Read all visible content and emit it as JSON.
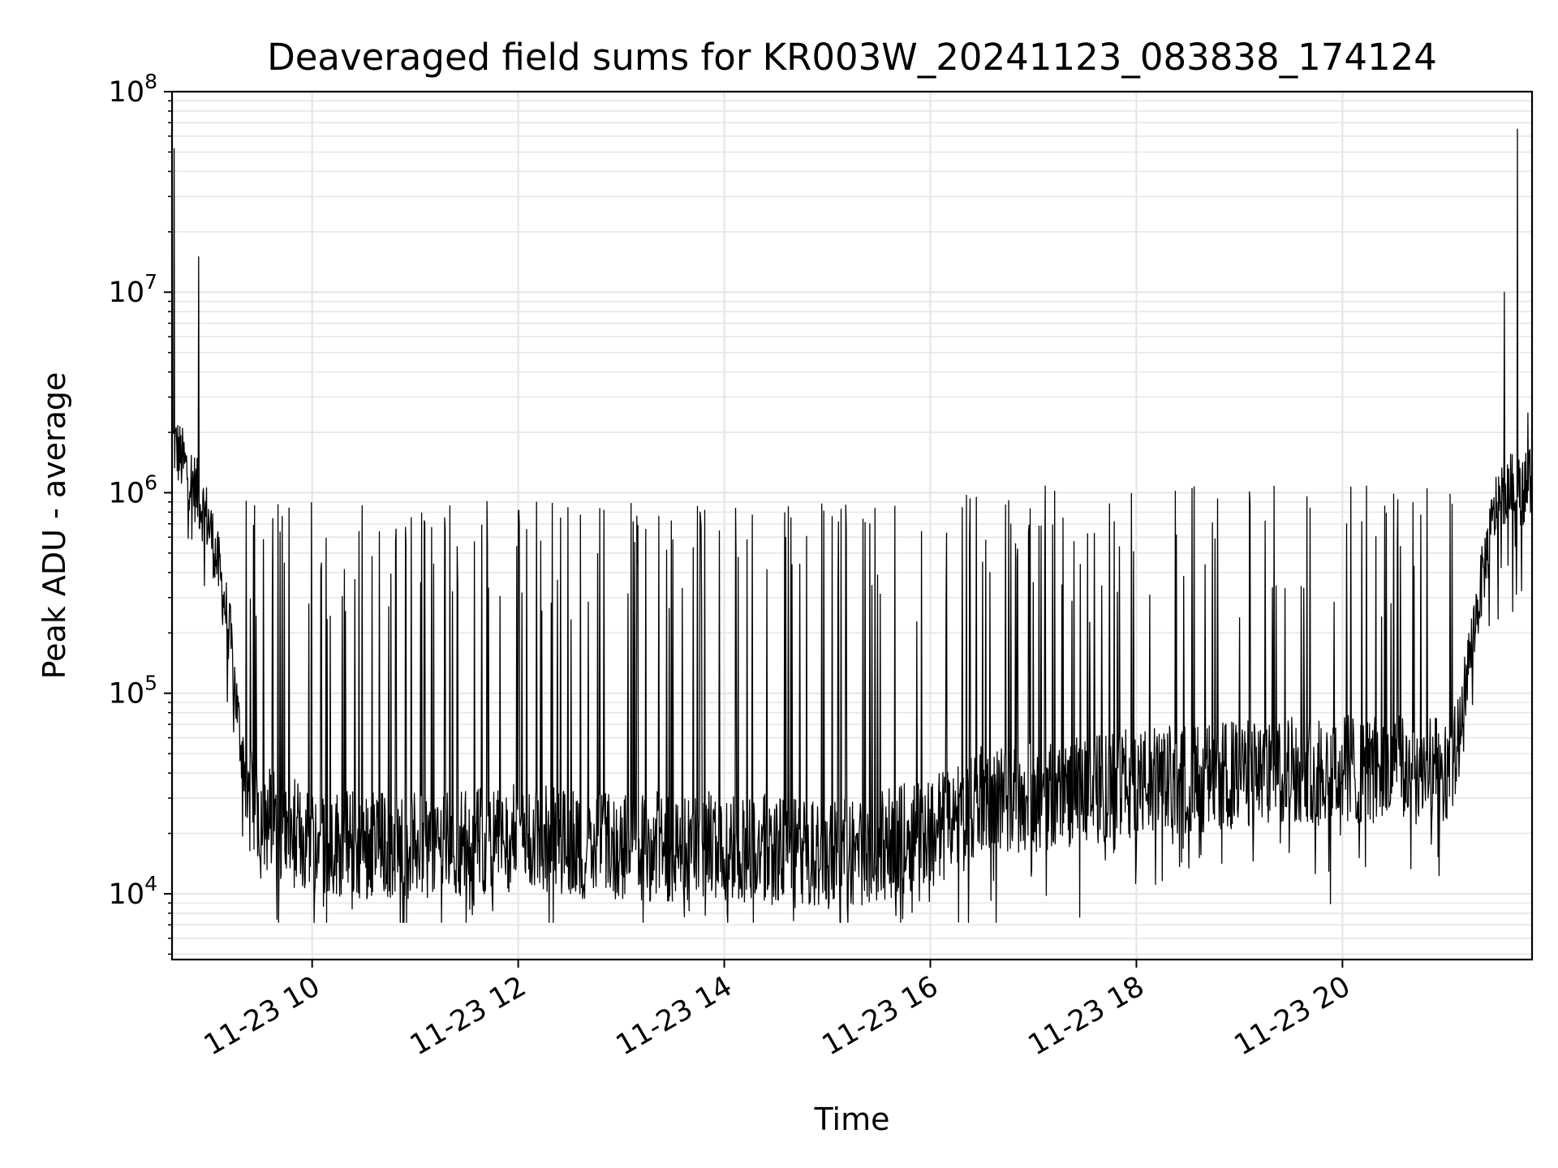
{
  "chart_data": {
    "type": "line",
    "title": "Deaveraged field sums for KR003W_20241123_083838_174124",
    "xlabel": "Time",
    "ylabel": "Peak ADU - average",
    "yscale": "log",
    "ylim": [
      4700,
      100000000
    ],
    "xlim_hours": [
      8.64,
      21.84
    ],
    "x_tick_labels": [
      "11-23 10",
      "11-23 12",
      "11-23 14",
      "11-23 16",
      "11-23 18",
      "11-23 20"
    ],
    "x_tick_hours": [
      10,
      12,
      14,
      16,
      18,
      20
    ],
    "y_ticks": [
      {
        "base": "10",
        "exp": "4",
        "value": 10000
      },
      {
        "base": "10",
        "exp": "5",
        "value": 100000
      },
      {
        "base": "10",
        "exp": "6",
        "value": 1000000
      },
      {
        "base": "10",
        "exp": "7",
        "value": 10000000
      },
      {
        "base": "10",
        "exp": "8",
        "value": 100000000
      }
    ],
    "grid": true,
    "line_color": "#000000",
    "grid_color": "#e6e6e6",
    "series": [
      {
        "baseline": [
          {
            "hour": 8.65,
            "value": 1800000
          },
          {
            "hour": 8.75,
            "value": 1400000
          },
          {
            "hour": 8.85,
            "value": 1100000
          },
          {
            "hour": 9.0,
            "value": 700000
          },
          {
            "hour": 9.1,
            "value": 400000
          },
          {
            "hour": 9.2,
            "value": 200000
          },
          {
            "hour": 9.3,
            "value": 60000
          },
          {
            "hour": 9.4,
            "value": 28000
          },
          {
            "hour": 9.6,
            "value": 23000
          },
          {
            "hour": 10.0,
            "value": 18000
          },
          {
            "hour": 11.0,
            "value": 17500
          },
          {
            "hour": 12.0,
            "value": 19000
          },
          {
            "hour": 13.0,
            "value": 17000
          },
          {
            "hour": 14.0,
            "value": 17500
          },
          {
            "hour": 15.0,
            "value": 15500
          },
          {
            "hour": 15.5,
            "value": 17000
          },
          {
            "hour": 16.0,
            "value": 21000
          },
          {
            "hour": 16.5,
            "value": 29000
          },
          {
            "hour": 17.0,
            "value": 30000
          },
          {
            "hour": 18.0,
            "value": 36000
          },
          {
            "hour": 19.0,
            "value": 39000
          },
          {
            "hour": 19.5,
            "value": 43000
          },
          {
            "hour": 20.0,
            "value": 42000
          },
          {
            "hour": 21.0,
            "value": 40000
          },
          {
            "hour": 21.1,
            "value": 48000
          },
          {
            "hour": 21.2,
            "value": 120000
          },
          {
            "hour": 21.3,
            "value": 250000
          },
          {
            "hour": 21.4,
            "value": 500000
          },
          {
            "hour": 21.5,
            "value": 900000
          },
          {
            "hour": 21.6,
            "value": 1100000
          },
          {
            "hour": 21.7,
            "value": 1000000
          },
          {
            "hour": 21.8,
            "value": 1100000
          }
        ],
        "spikes": [
          {
            "hour": 8.66,
            "value": 52000000
          },
          {
            "hour": 8.9,
            "value": 15000000
          },
          {
            "hour": 21.57,
            "value": 10000000
          },
          {
            "hour": 21.7,
            "value": 65000000
          },
          {
            "hour": 21.8,
            "value": 2500000
          }
        ],
        "typical_spike_peak": 900000,
        "min_value": 7200
      }
    ]
  }
}
